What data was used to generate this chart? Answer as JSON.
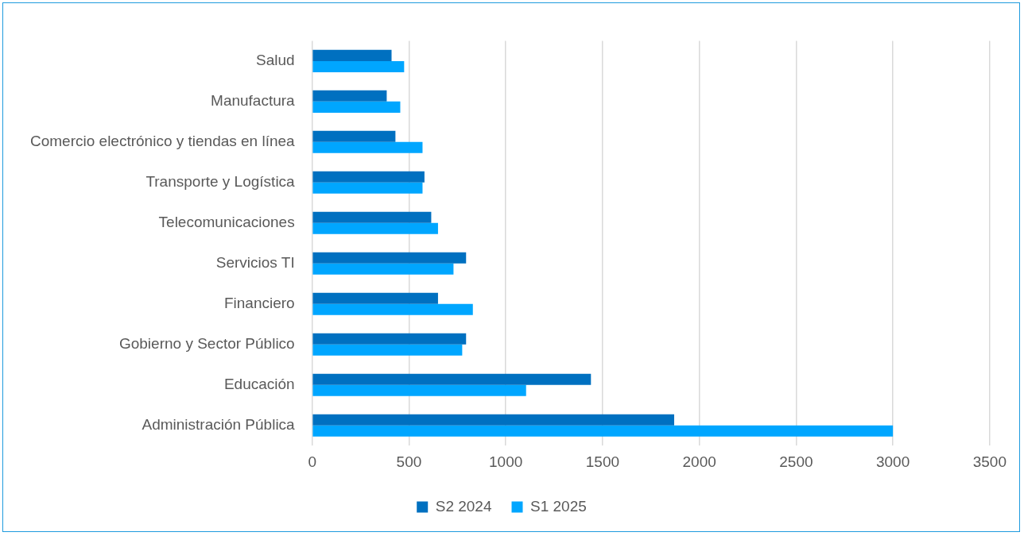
{
  "chart_data": {
    "type": "bar",
    "orientation": "horizontal",
    "categories": [
      "Salud",
      "Manufactura",
      "Comercio electrónico y tiendas en línea",
      "Transporte y Logística",
      "Telecomunicaciones",
      "Servicios TI",
      "Financiero",
      "Gobierno y Sector Público",
      "Educación",
      "Administración Pública"
    ],
    "series": [
      {
        "name": "S2 2024",
        "color": "#0070c0",
        "values": [
          410,
          385,
          430,
          580,
          615,
          795,
          650,
          795,
          1440,
          1870
        ]
      },
      {
        "name": "S1 2025",
        "color": "#00a6ff",
        "values": [
          475,
          455,
          570,
          570,
          650,
          730,
          830,
          775,
          1105,
          3000
        ]
      }
    ],
    "xlim": [
      0,
      3500
    ],
    "xticks": [
      0,
      500,
      1000,
      1500,
      2000,
      2500,
      3000,
      3500
    ],
    "grid": "x",
    "legend": "bottom"
  }
}
